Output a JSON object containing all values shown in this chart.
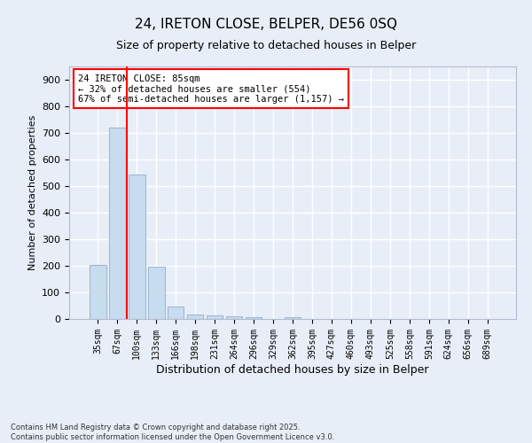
{
  "title_line1": "24, IRETON CLOSE, BELPER, DE56 0SQ",
  "title_line2": "Size of property relative to detached houses in Belper",
  "xlabel": "Distribution of detached houses by size in Belper",
  "ylabel": "Number of detached properties",
  "categories": [
    "35sqm",
    "67sqm",
    "100sqm",
    "133sqm",
    "166sqm",
    "198sqm",
    "231sqm",
    "264sqm",
    "296sqm",
    "329sqm",
    "362sqm",
    "395sqm",
    "427sqm",
    "460sqm",
    "493sqm",
    "525sqm",
    "558sqm",
    "591sqm",
    "624sqm",
    "656sqm",
    "689sqm"
  ],
  "values": [
    202,
    720,
    544,
    196,
    46,
    18,
    14,
    9,
    6,
    0,
    7,
    0,
    0,
    0,
    0,
    0,
    0,
    0,
    0,
    0,
    0
  ],
  "bar_color": "#c8dcf0",
  "bar_edge_color": "#a0b8d0",
  "vline_x": 1.5,
  "vline_color": "red",
  "annotation_text": "24 IRETON CLOSE: 85sqm\n← 32% of detached houses are smaller (554)\n67% of semi-detached houses are larger (1,157) →",
  "annotation_box_color": "white",
  "annotation_box_edge_color": "red",
  "ylim": [
    0,
    950
  ],
  "yticks": [
    0,
    100,
    200,
    300,
    400,
    500,
    600,
    700,
    800,
    900
  ],
  "background_color": "#e8eef8",
  "grid_color": "white",
  "footer_line1": "Contains HM Land Registry data © Crown copyright and database right 2025.",
  "footer_line2": "Contains public sector information licensed under the Open Government Licence v3.0."
}
